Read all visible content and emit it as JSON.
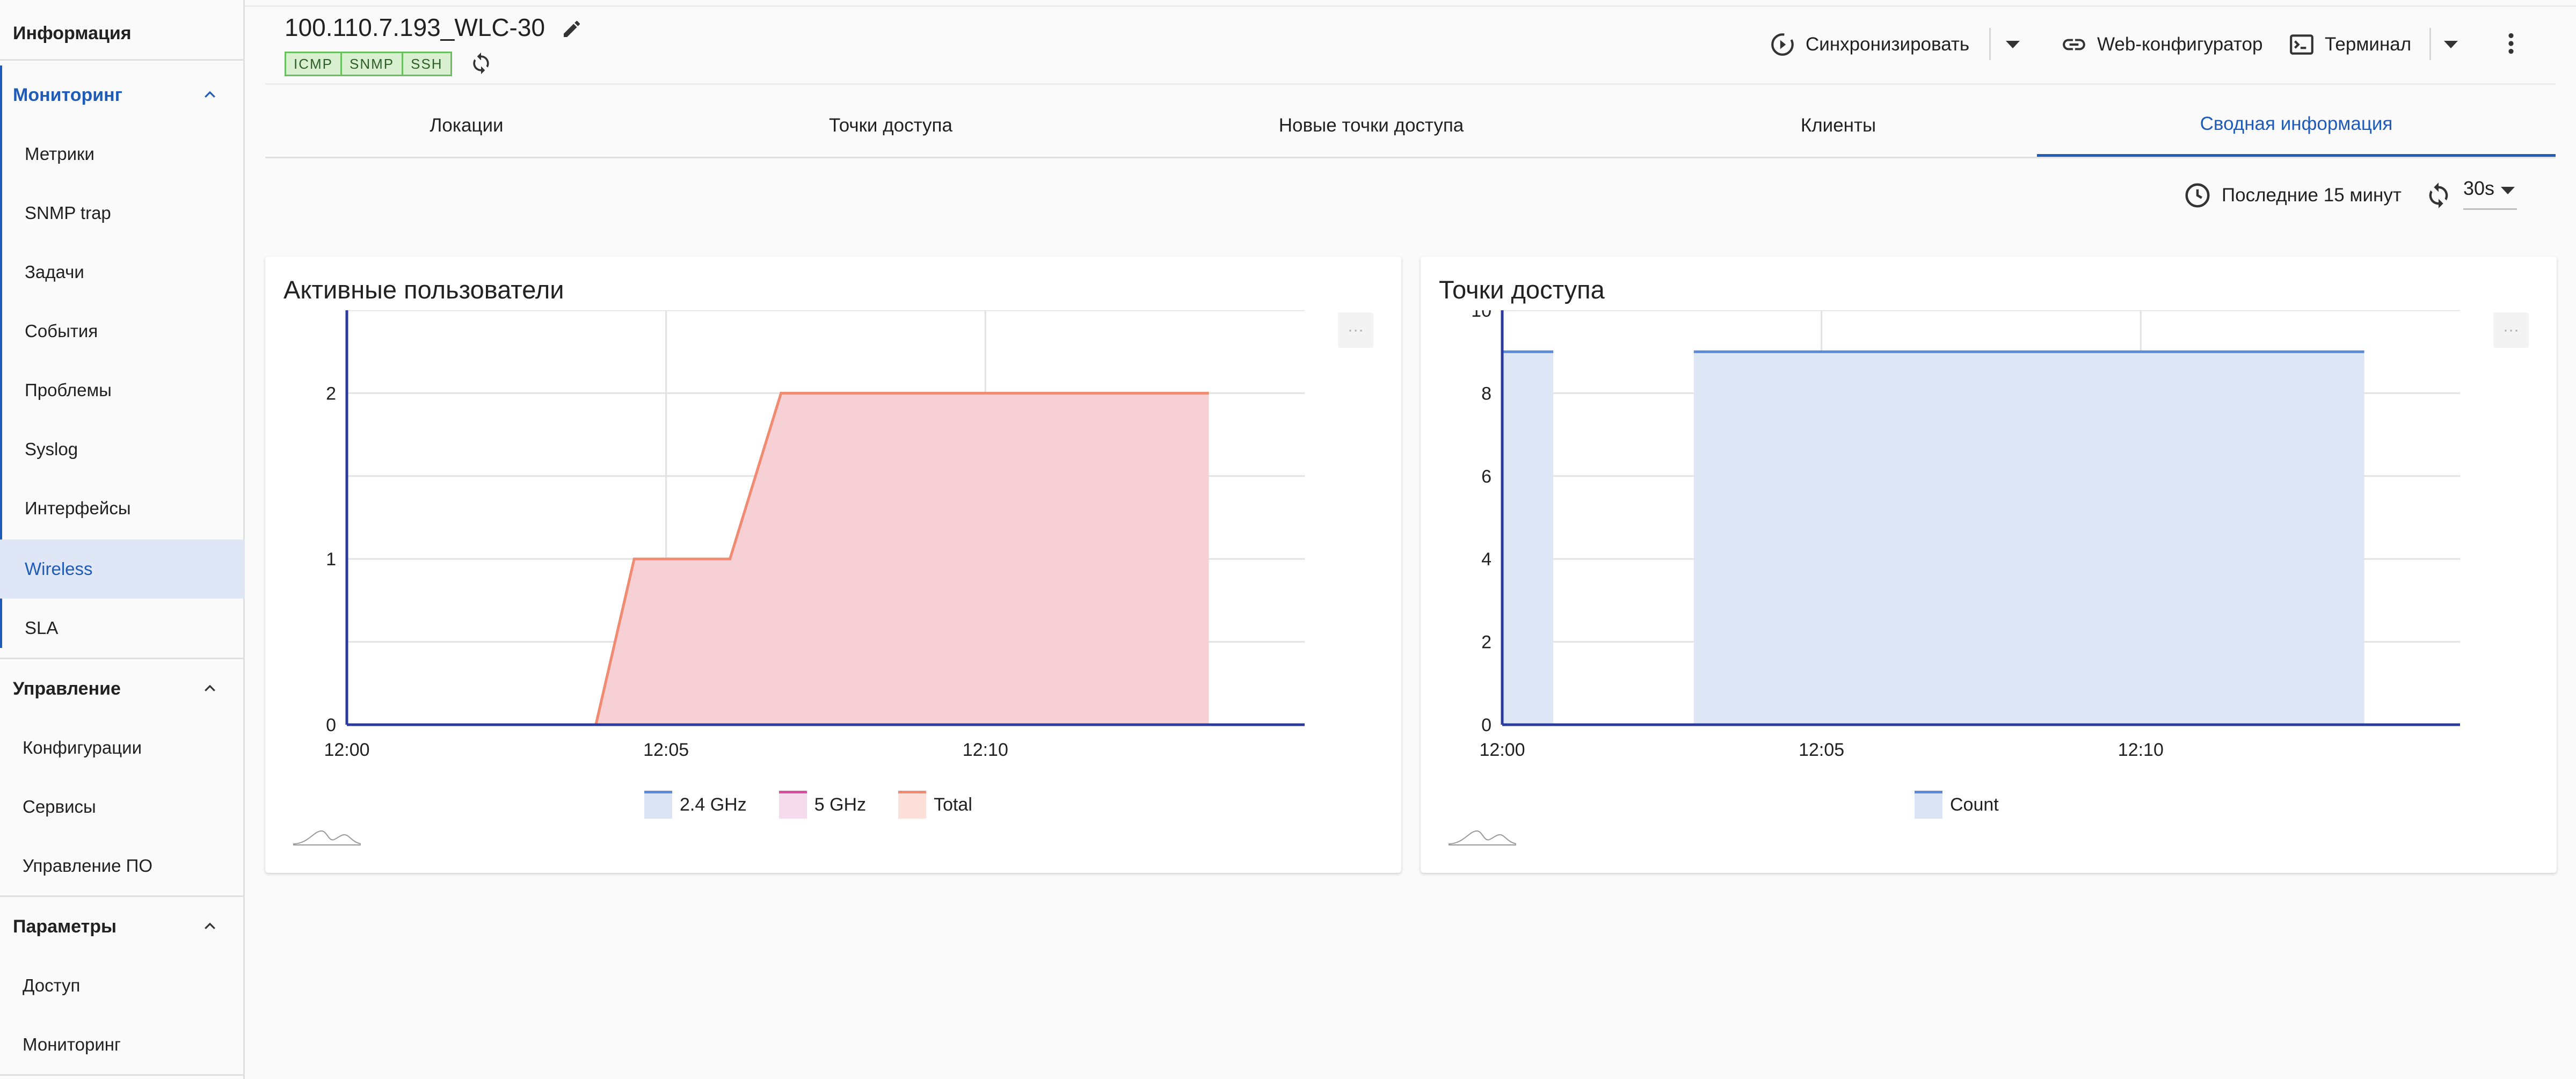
{
  "sidebar": {
    "info_label": "Информация",
    "monitoring": {
      "label": "Мониторинг",
      "items": [
        "Метрики",
        "SNMP trap",
        "Задачи",
        "События",
        "Проблемы",
        "Syslog",
        "Интерфейсы",
        "Wireless",
        "SLA"
      ],
      "active_item": "Wireless"
    },
    "management": {
      "label": "Управление",
      "items": [
        "Конфигурации",
        "Сервисы",
        "Управление ПО"
      ]
    },
    "parameters": {
      "label": "Параметры",
      "items": [
        "Доступ",
        "Мониторинг"
      ]
    }
  },
  "header": {
    "title": "100.110.7.193_WLC-30",
    "tags": [
      "ICMP",
      "SNMP",
      "SSH"
    ],
    "sync_label": "Синхронизировать",
    "web_config_label": "Web-конфигуратор",
    "terminal_label": "Терминал",
    "icons": [
      "edit-icon",
      "refresh-icon",
      "sync-icon",
      "link-icon",
      "terminal-icon",
      "more-vert-icon"
    ]
  },
  "tabs": {
    "items": [
      "Локации",
      "Точки доступа",
      "Новые точки доступа",
      "Клиенты",
      "Сводная информация"
    ],
    "active": "Сводная информация"
  },
  "time_range": {
    "label": "Последние 15 минут",
    "refresh_interval": "30s"
  },
  "colors": {
    "accent": "#1f5bb8",
    "series_24": "#5b8ad9",
    "series_5": "#d94ea0",
    "series_total": "#f08a70",
    "total_fill": "#f6d0d4",
    "count_fill": "#dde6f5",
    "tag_bg": "#d8f0d0",
    "tag_border": "#6abf5e"
  },
  "chart_data": [
    {
      "type": "area",
      "title": "Активные пользователи",
      "x_ticks": [
        "12:00",
        "12:05",
        "12:10"
      ],
      "y_ticks": [
        "0",
        "1",
        "2"
      ],
      "ylim": [
        0,
        2.5
      ],
      "xlim": [
        "12:00",
        "12:15"
      ],
      "grid": true,
      "legend_position": "bottom",
      "series": [
        {
          "name": "2.4 GHz",
          "color": "#5b8ad9",
          "x": [
            "12:00",
            "12:15"
          ],
          "y": [
            0,
            0
          ]
        },
        {
          "name": "5 GHz",
          "color": "#d94ea0",
          "x": [
            "12:00",
            "12:15"
          ],
          "y": [
            0,
            0
          ]
        },
        {
          "name": "Total",
          "color": "#f08a70",
          "x": [
            "12:03.9",
            "12:04.5",
            "12:06.0",
            "12:06.8",
            "12:13.5"
          ],
          "y": [
            0,
            1,
            1,
            2,
            2
          ]
        }
      ]
    },
    {
      "type": "area",
      "title": "Точки доступа",
      "x_ticks": [
        "12:00",
        "12:05",
        "12:10"
      ],
      "y_ticks": [
        "0",
        "2",
        "4",
        "6",
        "8",
        "10"
      ],
      "ylim": [
        0,
        10
      ],
      "xlim": [
        "12:00",
        "12:15"
      ],
      "grid": true,
      "legend_position": "bottom",
      "series": [
        {
          "name": "Count",
          "color": "#5b8ad9",
          "segments": [
            {
              "x": [
                "12:00",
                "12:00.8"
              ],
              "y": [
                9,
                9
              ]
            },
            {
              "x": [
                "12:03.0",
                "12:13.5"
              ],
              "y": [
                9,
                9
              ]
            }
          ]
        }
      ]
    }
  ]
}
